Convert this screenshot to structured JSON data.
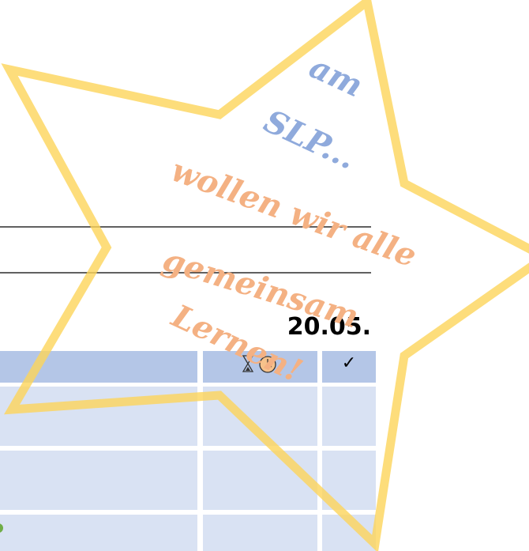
{
  "banner": {
    "lines": [
      "am",
      "SLP...",
      "wollen wir alle",
      "gemeinsam",
      "Lernen!"
    ]
  },
  "date": "20.05.",
  "table": {
    "check_header": "✓"
  }
}
